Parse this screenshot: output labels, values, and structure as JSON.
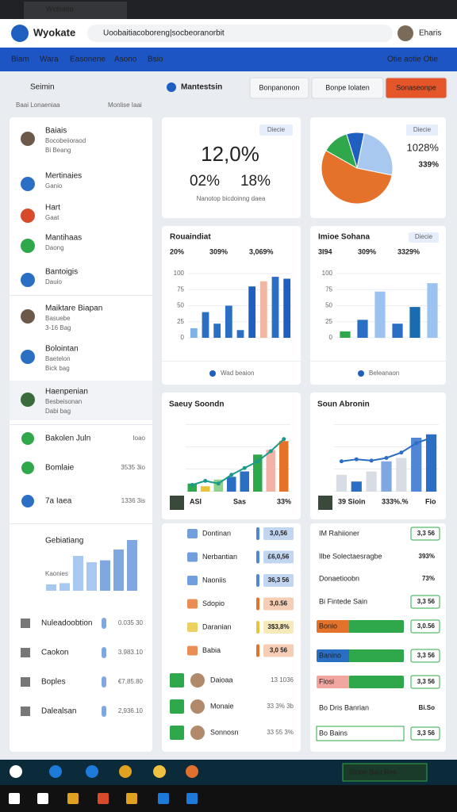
{
  "browser": {
    "tab": "Wcbiatio",
    "brand": "Wyokate",
    "url": "Uoobaitiacoboreng|socbeoranorbit",
    "user": "Eharis"
  },
  "nav": {
    "items": [
      "Biam",
      "Wara",
      "Easonene",
      "Asono",
      "Bsio"
    ],
    "right": "Otie aotie Otie"
  },
  "sidebar": {
    "search": "Seimin",
    "sub": [
      "Baai Lonaeniaa",
      "Monlise Iaai"
    ],
    "items": [
      {
        "title": "Baiais",
        "lines": [
          "Bocobeiioraod",
          "Bi Beang"
        ]
      },
      {
        "title": "Mertinaies",
        "lines": [
          "Ganio"
        ]
      },
      {
        "title": "Hart",
        "lines": [
          "Gaat"
        ]
      },
      {
        "title": "Mantihaas",
        "lines": [
          "Daong"
        ]
      },
      {
        "title": "Bantoigis",
        "lines": [
          "Dauio"
        ]
      },
      {
        "title": "Maiktare Biapan",
        "lines": [
          "Basuebe",
          "3-16 Bag"
        ]
      },
      {
        "title": "Bolointan",
        "lines": [
          "Baetelon",
          "Bick bag"
        ]
      },
      {
        "title": "Haenpenian",
        "lines": [
          "Besbeisonan",
          "Dabi bag"
        ]
      }
    ],
    "rows": [
      {
        "label": "Bakolen Juln",
        "value": "Ioao"
      },
      {
        "label": "Bomlaie",
        "value": "3535 3io"
      },
      {
        "label": "7a Iaea",
        "value": "1336 3is"
      }
    ],
    "chart": {
      "title": "Gebiatiang",
      "label": "Kaonies",
      "values": [
        10,
        12,
        55,
        45,
        48,
        65,
        80
      ],
      "ylim": [
        0,
        100
      ]
    },
    "totals": [
      {
        "label": "Nuleadoobtion",
        "value": "0.035 30"
      },
      {
        "label": "Caokon",
        "value": "3.983.10"
      },
      {
        "label": "Boples",
        "value": "€7,85.80"
      },
      {
        "label": "Dalealsan",
        "value": "2,936.10"
      }
    ]
  },
  "header": {
    "title": "Mantestsin",
    "buttons": [
      "Bonpanonon",
      "Bonpe Iolaten",
      "Sonaseonpe"
    ]
  },
  "kpi": {
    "badge": "Diecie",
    "big": "12,0%",
    "a": "02%",
    "b": "18%",
    "caption": "Nanotop bicdoinng daea"
  },
  "pie": {
    "badge": "Diecie",
    "big": "1028%",
    "small": "339%",
    "values": [
      8,
      25,
      55,
      12
    ],
    "colors": [
      "#1f5fbf",
      "#a9c8ef",
      "#e4722a",
      "#2ea84a"
    ]
  },
  "bars": [
    {
      "title": "Rouaindiat",
      "stats": [
        "20%",
        "309%",
        "3,069%"
      ],
      "ylim": [
        0,
        100
      ],
      "yticks": [
        0,
        25,
        50,
        75,
        100
      ],
      "values": [
        15,
        40,
        22,
        50,
        12,
        80,
        88,
        95,
        92
      ],
      "colors": [
        "#7fb0e6",
        "#2b6fc4",
        "#2b6fc4",
        "#2b6fc4",
        "#2b6fc4",
        "#1f5fbf",
        "#f0b7a4",
        "#2b6fc4",
        "#1f5fbf"
      ],
      "footer": "Wad beaion"
    },
    {
      "title": "Imioe Sohana",
      "badge": "Diecie",
      "stats": [
        "3I94",
        "309%",
        "3329%"
      ],
      "ylim": [
        0,
        100
      ],
      "yticks": [
        0,
        25,
        50,
        75,
        100
      ],
      "values": [
        10,
        28,
        72,
        22,
        48,
        85
      ],
      "colors": [
        "#2ea84a",
        "#2b6fc4",
        "#9cc3ef",
        "#2b6fc4",
        "#1a6bb0",
        "#9cc3ef"
      ],
      "footer": "Beleanaon"
    }
  ],
  "combo": [
    {
      "title": "Saeuy Soondn",
      "ylim": [
        0,
        100
      ],
      "values": [
        12,
        8,
        18,
        22,
        30,
        55,
        62,
        75
      ],
      "colors": [
        "#2ea84a",
        "#e8c43a",
        "#8fd18f",
        "#2b6fc4",
        "#2b6fc4",
        "#2ea84a",
        "#f2b3a6",
        "#e4722a"
      ],
      "line": [
        10,
        16,
        12,
        25,
        35,
        45,
        60,
        78
      ],
      "foot": [
        "ASI",
        "Sas",
        "33%"
      ]
    },
    {
      "title": "Soun Abronin",
      "ylim": [
        0,
        100
      ],
      "values": [
        25,
        15,
        30,
        45,
        50,
        80,
        85
      ],
      "colors": [
        "#d8dde5",
        "#2b6fc4",
        "#d8dde5",
        "#7fa8e0",
        "#d8dde5",
        "#4f86d6",
        "#2b6fc4"
      ],
      "line": [
        45,
        48,
        46,
        50,
        58,
        72,
        80
      ],
      "foot": [
        "39 Sioin",
        "333%.%",
        "Fio"
      ]
    }
  ],
  "list_left": [
    {
      "label": "Dontinan",
      "value": "3,0,56",
      "color": "#4f86d6"
    },
    {
      "label": "Nerbantian",
      "value": "£6,0,56",
      "color": "#4f86d6"
    },
    {
      "label": "Naoniis",
      "value": "36,3 56",
      "color": "#4f86d6"
    },
    {
      "label": "Sdopio",
      "value": "3,0.56",
      "color": "#e4722a"
    },
    {
      "label": "Daranian",
      "value": "3$3,8%",
      "color": "#e8c43a"
    },
    {
      "label": "Babia",
      "value": "3,0 56",
      "color": "#e4722a"
    }
  ],
  "people": [
    {
      "label": "Daioaa",
      "value": "13 1036"
    },
    {
      "label": "Monaie",
      "value": "33 3% 3b"
    },
    {
      "label": "Sonnosn",
      "value": "33 55 3%"
    }
  ],
  "list_right": [
    {
      "label": "IM Rahiioner",
      "value": "3,3 56"
    },
    {
      "label": "Ilbe Solectaesragbe",
      "value": "393%"
    },
    {
      "label": "Donaetioobn",
      "value": "73%"
    },
    {
      "label": "Bi Fintede Sain",
      "value": "3,3 56"
    },
    {
      "label": "Bonio",
      "value": "3,0.56"
    },
    {
      "label": "Banino",
      "value": "3,3 56"
    },
    {
      "label": "Fiosi",
      "value": "3,3 56"
    },
    {
      "label": "Bo Dris Banrian",
      "value": "Bi.So"
    },
    {
      "label": "Bo Bains",
      "value": "3,3 56"
    }
  ],
  "taskbar": {
    "tray": "Blobe Bau Bee"
  }
}
